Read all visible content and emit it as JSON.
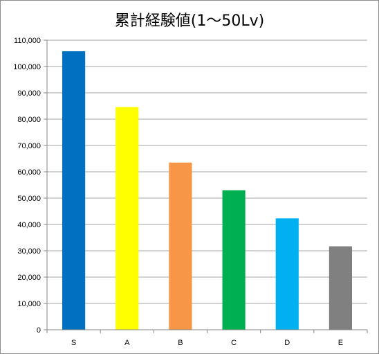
{
  "chart_data": {
    "type": "bar",
    "title": "累計経験値(1～50Lv)",
    "xlabel": "",
    "ylabel": "",
    "categories": [
      "S",
      "A",
      "B",
      "C",
      "D",
      "E"
    ],
    "values": [
      105800,
      84600,
      63500,
      53000,
      42300,
      31700
    ],
    "colors": [
      "#0070c0",
      "#ffff00",
      "#f79646",
      "#00b050",
      "#00b0f0",
      "#808080"
    ],
    "ylim": [
      0,
      110000
    ],
    "yticks": [
      "0",
      "10,000",
      "20,000",
      "30,000",
      "40,000",
      "50,000",
      "60,000",
      "70,000",
      "80,000",
      "90,000",
      "100,000",
      "110,000"
    ],
    "ytick_values": [
      0,
      10000,
      20000,
      30000,
      40000,
      50000,
      60000,
      70000,
      80000,
      90000,
      100000,
      110000
    ],
    "grid": true,
    "legend": "none"
  }
}
